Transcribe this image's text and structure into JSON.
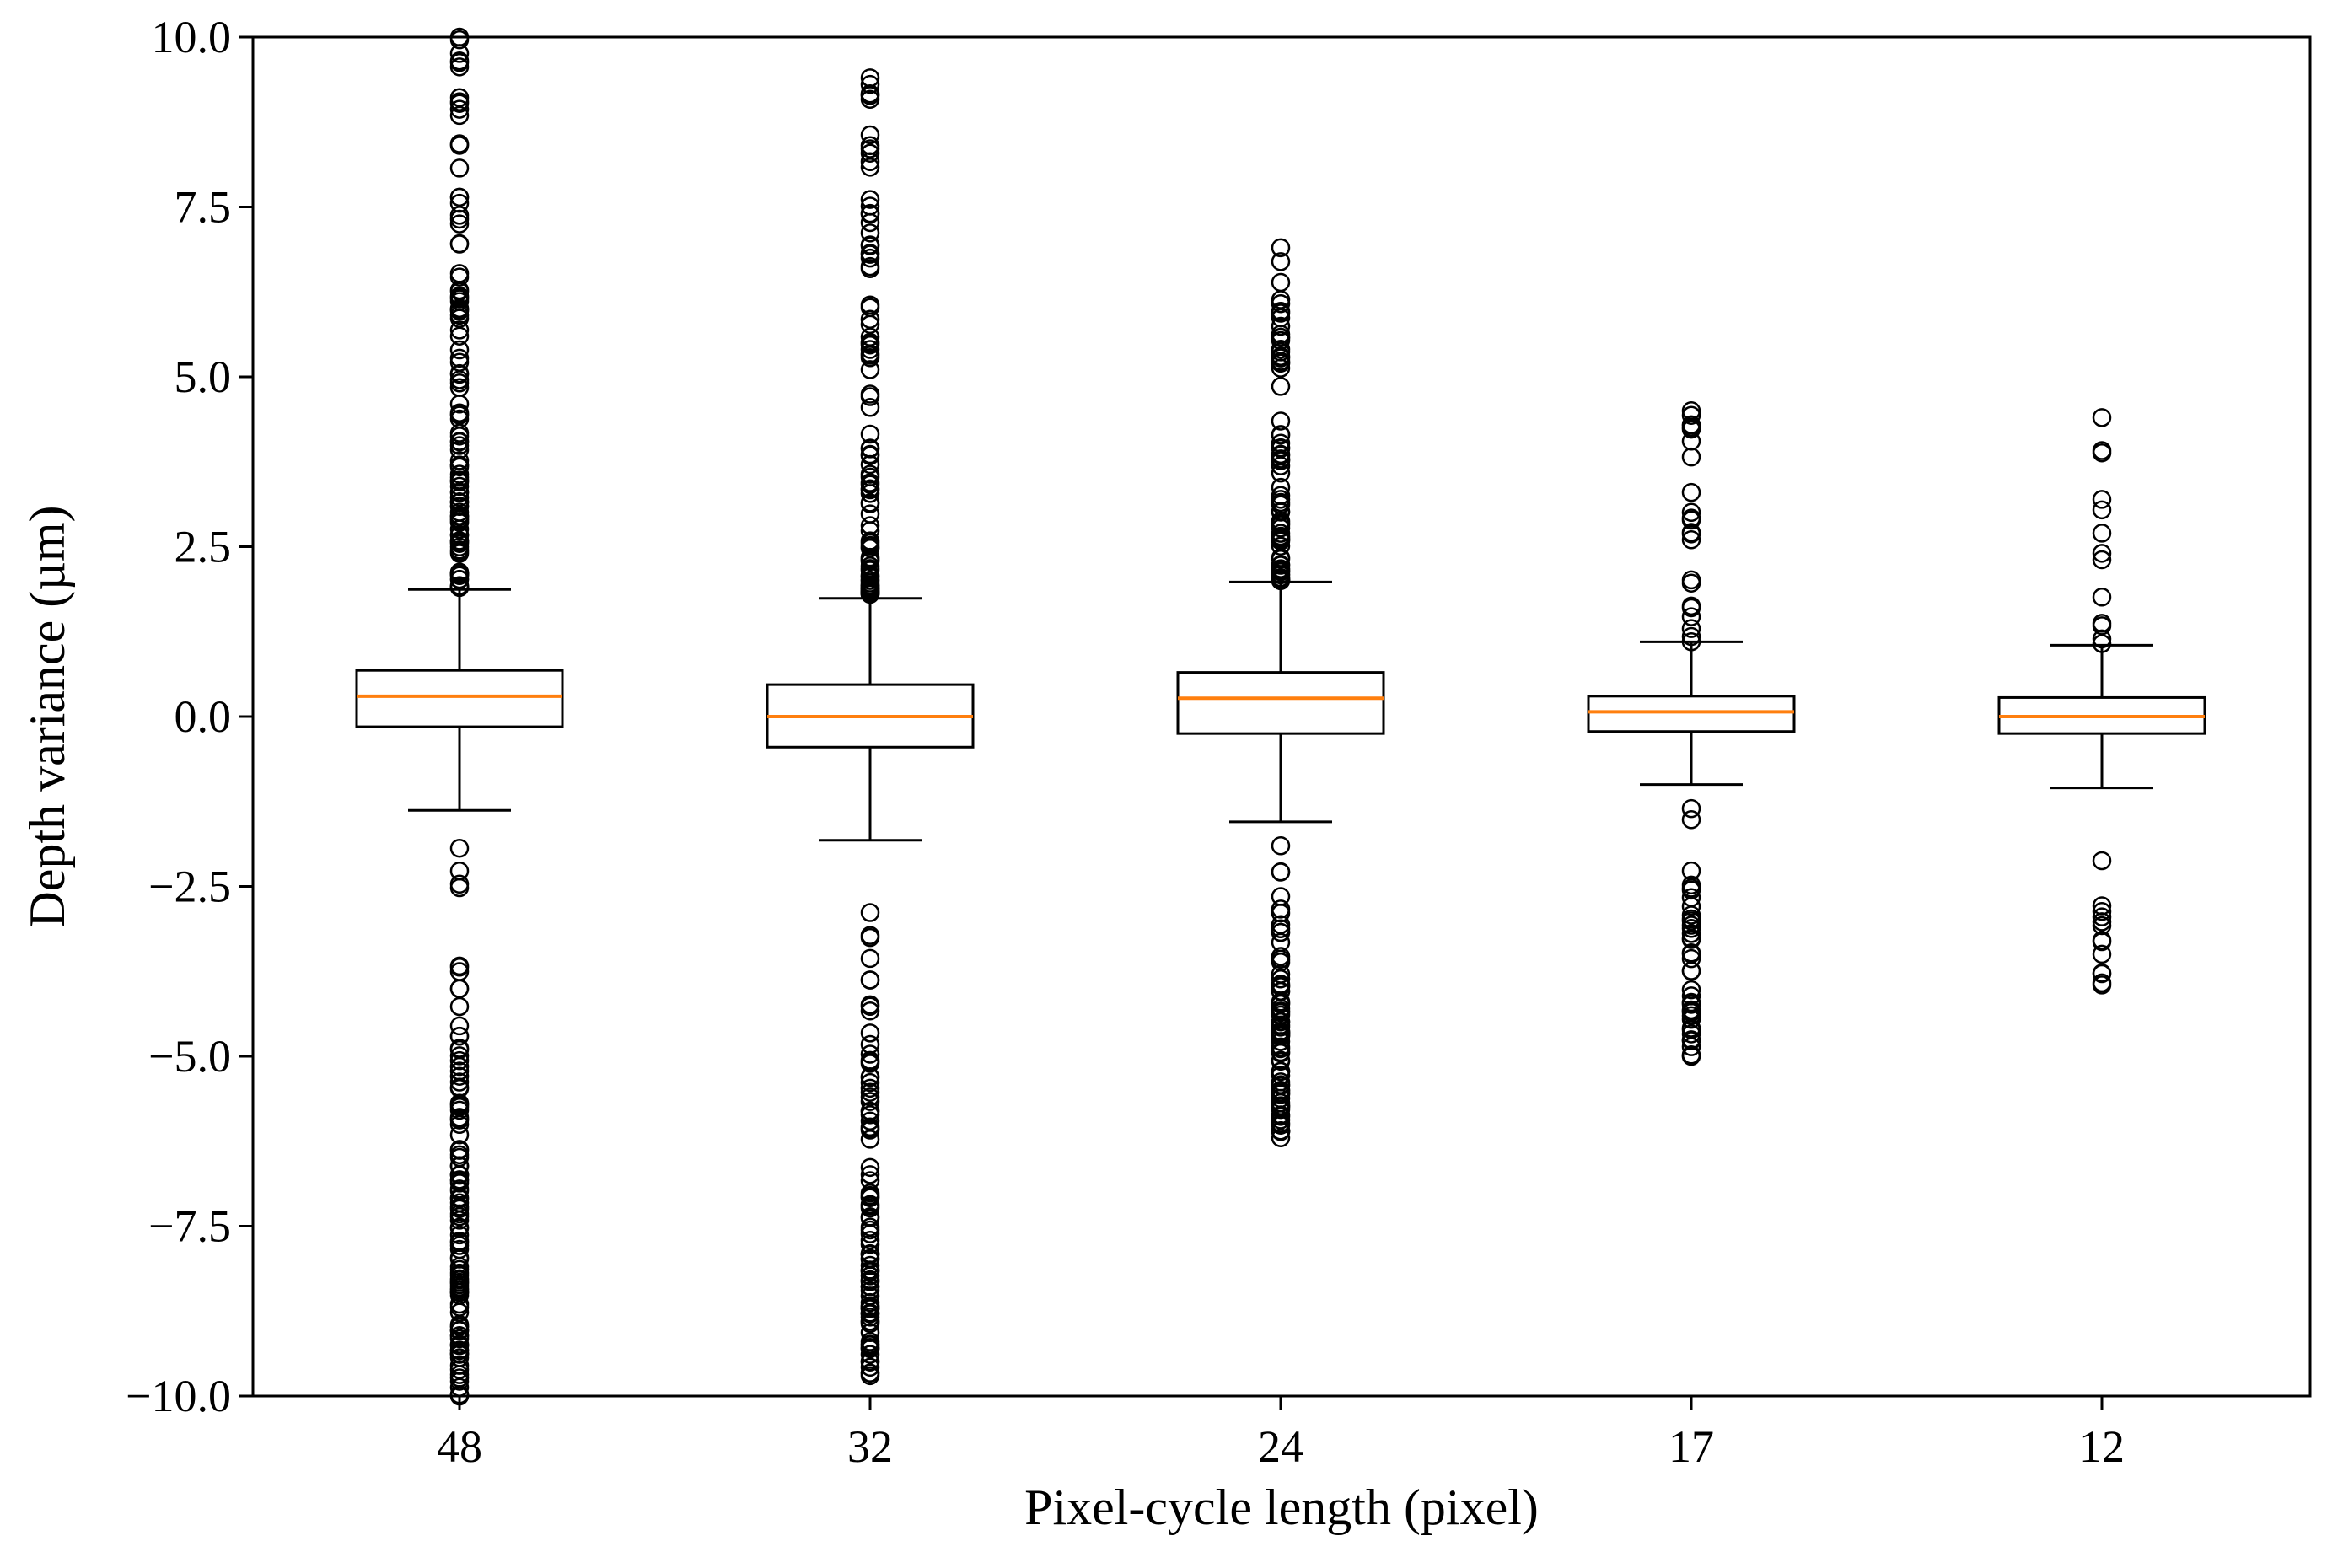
{
  "chart_data": {
    "type": "box",
    "title": "",
    "xlabel": "Pixel-cycle length (pixel)",
    "ylabel": "Depth variance (µm)",
    "ylim": [
      -10.0,
      10.0
    ],
    "yticks": [
      -10.0,
      -7.5,
      -5.0,
      -2.5,
      0.0,
      2.5,
      5.0,
      7.5,
      10.0
    ],
    "ytick_labels": [
      "−10.0",
      "−7.5",
      "−5.0",
      "−2.5",
      "0.0",
      "2.5",
      "5.0",
      "7.5",
      "10.0"
    ],
    "categories": [
      "48",
      "32",
      "24",
      "17",
      "12"
    ],
    "grid": false,
    "colors": {
      "box": "#000000",
      "median": "#ff7f0e",
      "background": "#ffffff"
    },
    "boxes": [
      {
        "category": "48",
        "q1": -0.15,
        "median": 0.3,
        "q3": 0.68,
        "whisker_low": -1.38,
        "whisker_high": 1.87,
        "outlier_low_range": [
          -10.0,
          -1.45
        ],
        "outlier_high_range": [
          1.9,
          10.0
        ]
      },
      {
        "category": "32",
        "q1": -0.45,
        "median": 0.0,
        "q3": 0.47,
        "whisker_low": -1.82,
        "whisker_high": 1.74,
        "outlier_low_range": [
          -9.7,
          -1.85
        ],
        "outlier_high_range": [
          1.8,
          9.4
        ]
      },
      {
        "category": "24",
        "q1": -0.25,
        "median": 0.27,
        "q3": 0.65,
        "whisker_low": -1.55,
        "whisker_high": 1.98,
        "outlier_low_range": [
          -6.2,
          -1.6
        ],
        "outlier_high_range": [
          2.0,
          6.9
        ]
      },
      {
        "category": "17",
        "q1": -0.22,
        "median": 0.07,
        "q3": 0.3,
        "whisker_low": -1.0,
        "whisker_high": 1.1,
        "outlier_low_range": [
          -5.0,
          -1.05
        ],
        "outlier_high_range": [
          1.1,
          4.5
        ]
      },
      {
        "category": "12",
        "q1": -0.25,
        "median": 0.0,
        "q3": 0.28,
        "whisker_low": -1.05,
        "whisker_high": 1.05,
        "outlier_low_range": [
          -3.95,
          -1.05
        ],
        "outlier_high_range": [
          1.05,
          4.4
        ]
      }
    ]
  }
}
